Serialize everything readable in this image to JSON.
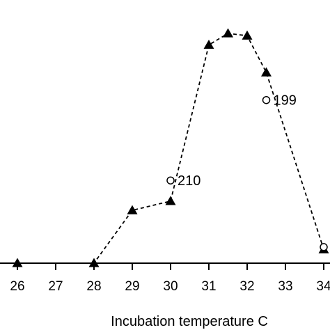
{
  "chart_data": {
    "type": "line",
    "xlabel": "Incubation temperature C",
    "ylabel": "",
    "title": "",
    "xlim": [
      25.8,
      34.0
    ],
    "ylim": [
      0,
      100
    ],
    "x_ticks": [
      26,
      27,
      28,
      29,
      30,
      31,
      32,
      33,
      34
    ],
    "x_tick_labels": [
      "26",
      "27",
      "28",
      "29",
      "30",
      "31",
      "32",
      "33",
      "34"
    ],
    "series": [
      {
        "marker": "filled-triangle",
        "line": "dashed",
        "x": [
          26,
          28,
          29,
          30,
          31,
          31.5,
          32,
          32.5,
          34
        ],
        "y": [
          0,
          0,
          23,
          27,
          95,
          100,
          99,
          83,
          6
        ]
      },
      {
        "marker": "open-circle",
        "line": "none",
        "x": [
          30,
          32.5,
          34
        ],
        "y": [
          36,
          71,
          7
        ],
        "labels": [
          "210",
          "199",
          ""
        ]
      }
    ],
    "grid": false,
    "legend": "none"
  }
}
